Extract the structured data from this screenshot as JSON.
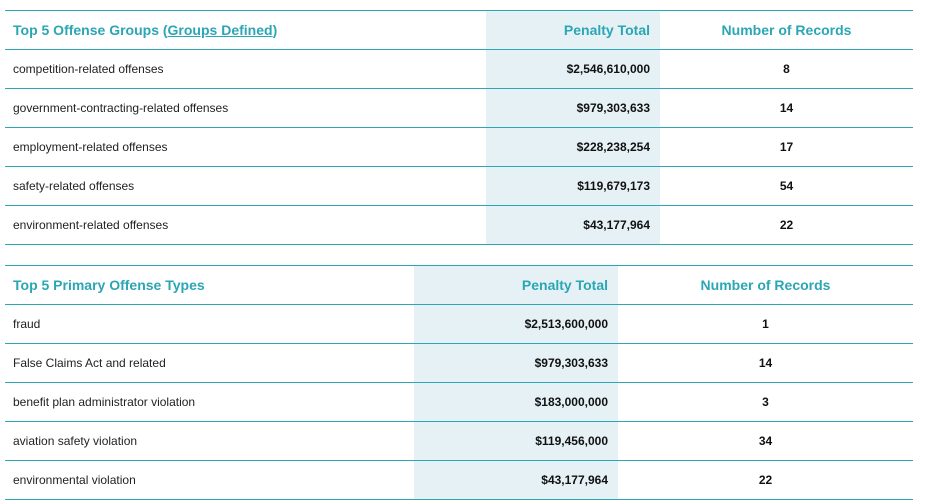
{
  "groups": {
    "title": "Top 5 Offense Groups",
    "link_open": "(",
    "link_label": "Groups Defined",
    "link_close": ")",
    "col_penalty": "Penalty Total",
    "col_records": "Number of Records",
    "rows": [
      {
        "name": "competition-related offenses",
        "penalty": "$2,546,610,000",
        "records": "8"
      },
      {
        "name": "government-contracting-related offenses",
        "penalty": "$979,303,633",
        "records": "14"
      },
      {
        "name": "employment-related offenses",
        "penalty": "$228,238,254",
        "records": "17"
      },
      {
        "name": "safety-related offenses",
        "penalty": "$119,679,173",
        "records": "54"
      },
      {
        "name": "environment-related offenses",
        "penalty": "$43,177,964",
        "records": "22"
      }
    ]
  },
  "types": {
    "title": "Top 5 Primary Offense Types",
    "col_penalty": "Penalty Total",
    "col_records": "Number of Records",
    "rows": [
      {
        "name": "fraud",
        "penalty": "$2,513,600,000",
        "records": "1"
      },
      {
        "name": "False Claims Act and related",
        "penalty": "$979,303,633",
        "records": "14"
      },
      {
        "name": "benefit plan administrator violation",
        "penalty": "$183,000,000",
        "records": "3"
      },
      {
        "name": "aviation safety violation",
        "penalty": "$119,456,000",
        "records": "34"
      },
      {
        "name": "environmental violation",
        "penalty": "$43,177,964",
        "records": "22"
      }
    ]
  },
  "colors": {
    "accent": "#2aa6b4",
    "penalty_bg": "#e5f1f5"
  }
}
